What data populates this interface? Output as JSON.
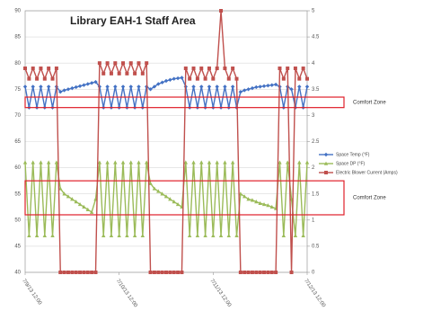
{
  "chart_data": {
    "type": "line",
    "title": "Library EAH-1 Staff Area",
    "x": [
      0,
      1,
      2,
      3,
      4,
      5,
      6,
      7,
      8,
      9,
      10,
      11,
      12,
      13,
      14,
      15,
      16,
      17,
      18,
      19,
      20,
      21,
      22,
      23,
      24,
      25,
      26,
      27,
      28,
      29,
      30,
      31,
      32,
      33,
      34,
      35,
      36,
      37,
      38,
      39,
      40,
      41,
      42,
      43,
      44,
      45,
      46,
      47,
      48,
      49,
      50,
      51,
      52,
      53,
      54,
      55,
      56,
      57,
      58,
      59,
      60,
      61,
      62,
      63,
      64,
      65,
      66,
      67,
      68,
      69,
      70,
      71,
      72
    ],
    "xlim": [
      0,
      72
    ],
    "xticks": [
      {
        "value": 0,
        "label": "7/9/13 12:00"
      },
      {
        "value": 24,
        "label": "7/10/13 12:00"
      },
      {
        "value": 48,
        "label": "7/11/13 12:00"
      },
      {
        "value": 72,
        "label": "7/12/13 12:00"
      }
    ],
    "ylim": [
      40,
      90
    ],
    "yticks": [
      40,
      45,
      50,
      55,
      60,
      65,
      70,
      75,
      80,
      85,
      90
    ],
    "y2lim": [
      0,
      5
    ],
    "y2ticks": [
      0,
      0.5,
      1,
      1.5,
      2,
      2.5,
      3,
      3.5,
      4,
      4.5,
      5
    ],
    "grid": true,
    "legend": "right",
    "series": [
      {
        "name": "Space Temp (°F)",
        "color": "#4472c4",
        "marker": "diamond",
        "values": [
          75.5,
          71.5,
          75.5,
          71.5,
          75.5,
          71.5,
          75.5,
          71.5,
          75.5,
          74.5,
          74.8,
          75,
          75.2,
          75.4,
          75.6,
          75.8,
          76,
          76.2,
          76.4,
          75.5,
          71.5,
          75.5,
          71.5,
          75.5,
          71.5,
          75.5,
          71.5,
          75.5,
          71.5,
          75.5,
          71.5,
          75.5,
          75,
          75.5,
          76,
          76.3,
          76.6,
          76.8,
          77,
          77.1,
          77.2,
          75.5,
          71.5,
          75.5,
          71.5,
          75.5,
          71.5,
          75.5,
          71.5,
          75.5,
          71.5,
          75.5,
          71.5,
          75.5,
          71.5,
          74.5,
          74.8,
          75,
          75.2,
          75.4,
          75.5,
          75.6,
          75.7,
          75.8,
          75.9,
          75.5,
          71.5,
          75.5,
          75,
          71.5,
          75.5,
          71.5,
          75.5
        ]
      },
      {
        "name": "Space DP (°F)",
        "color": "#9bbb59",
        "marker": "triangle",
        "values": [
          61,
          47,
          61,
          47,
          61,
          47,
          61,
          47,
          61,
          56,
          55,
          54.5,
          54,
          53.5,
          53,
          52.5,
          52,
          51.5,
          54,
          61,
          47,
          61,
          47,
          61,
          47,
          61,
          47,
          61,
          47,
          61,
          47,
          61,
          57,
          56,
          55.5,
          55,
          54.5,
          54,
          53.5,
          53,
          52.5,
          61,
          47,
          61,
          47,
          61,
          47,
          61,
          47,
          61,
          47,
          61,
          47,
          61,
          47,
          55,
          54.5,
          54,
          53.8,
          53.5,
          53.2,
          53,
          52.8,
          52.5,
          52.2,
          61,
          47,
          61,
          54,
          47,
          61,
          47,
          61
        ]
      },
      {
        "name": "Electric Blower Current (Amps)",
        "color": "#c0504d",
        "marker": "square",
        "axis": "y2",
        "values": [
          3.9,
          3.7,
          3.9,
          3.7,
          3.9,
          3.7,
          3.9,
          3.7,
          3.9,
          0,
          0,
          0,
          0,
          0,
          0,
          0,
          0,
          0,
          0,
          4.0,
          3.8,
          4.0,
          3.8,
          4.0,
          3.8,
          4.0,
          3.8,
          4.0,
          3.8,
          4.0,
          3.8,
          4.0,
          0,
          0,
          0,
          0,
          0,
          0,
          0,
          0,
          0,
          3.9,
          3.7,
          3.9,
          3.7,
          3.9,
          3.7,
          3.9,
          3.7,
          3.9,
          5,
          3.9,
          3.7,
          3.9,
          3.7,
          0,
          0,
          0,
          0,
          0,
          0,
          0,
          0,
          0,
          0,
          3.9,
          3.7,
          3.9,
          0,
          3.9,
          3.7,
          3.9,
          3.7
        ]
      }
    ],
    "annotations": [
      {
        "text": "Comfort Zone",
        "ylim": [
          71.5,
          73.5
        ]
      },
      {
        "text": "Comfort Zone",
        "ylim": [
          51,
          57.5
        ]
      }
    ]
  }
}
